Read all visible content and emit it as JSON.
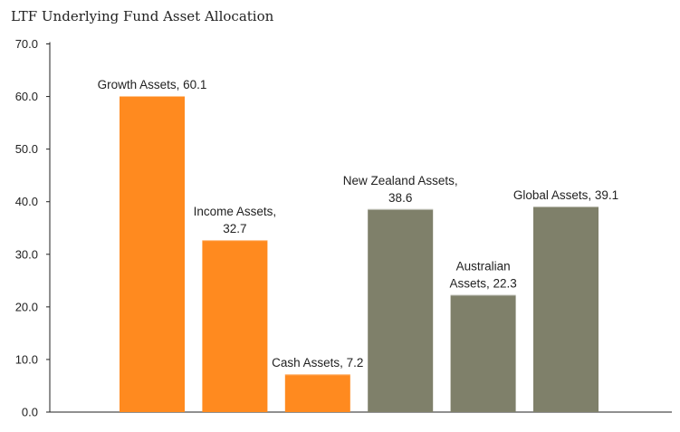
{
  "chart_data": {
    "type": "bar",
    "title": "LTF Underlying Fund Asset Allocation",
    "xlabel": "",
    "ylabel": "",
    "ylim": [
      0,
      70
    ],
    "yticks": [
      "0.0",
      "10.0",
      "20.0",
      "30.0",
      "40.0",
      "50.0",
      "60.0",
      "70.0"
    ],
    "grid": false,
    "categories": [
      "Growth Assets",
      "Income Assets",
      "Cash Assets",
      "New Zealand Assets",
      "Australian Assets",
      "Global Assets"
    ],
    "values": [
      60.1,
      32.7,
      7.2,
      38.6,
      22.3,
      39.1
    ],
    "colors": [
      "#FF8A1F",
      "#FF8A1F",
      "#FF8A1F",
      "#7F806A",
      "#7F806A",
      "#7F806A"
    ],
    "labels": [
      [
        "Growth Assets, 60.1"
      ],
      [
        "Income Assets,",
        "32.7"
      ],
      [
        "Cash Assets, 7.2"
      ],
      [
        "New Zealand Assets,",
        "38.6"
      ],
      [
        "Australian",
        "Assets, 22.3"
      ],
      [
        "Global Assets, 39.1"
      ]
    ]
  }
}
